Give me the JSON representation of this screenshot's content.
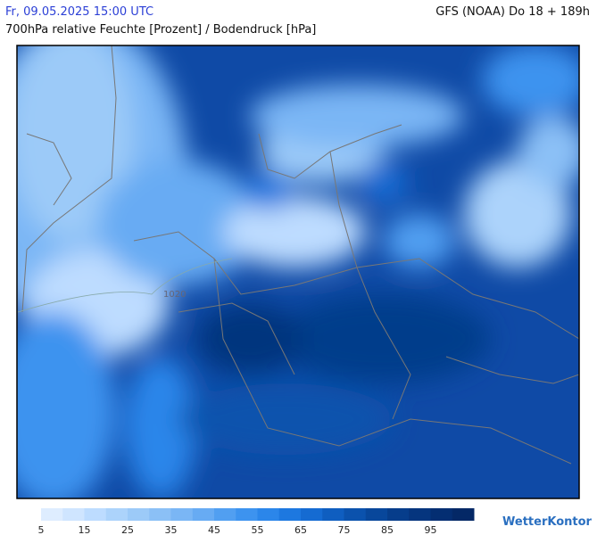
{
  "header": {
    "datetime": "Fr, 09.05.2025 15:00 UTC",
    "model": "GFS (NOAA) Do 18 + 189h",
    "title": "700hPa relative Feuchte [Prozent] / Bodendruck [hPa]"
  },
  "map": {
    "isobar_label": "1020"
  },
  "colorbar": {
    "lim": [
      5,
      105
    ],
    "ticks": [
      5,
      15,
      25,
      35,
      45,
      55,
      65,
      75,
      85,
      95
    ],
    "colors": [
      "#deedff",
      "#cfe5ff",
      "#bddcff",
      "#acd3fb",
      "#9ccaf8",
      "#8bc0f6",
      "#7ab6f5",
      "#67abf3",
      "#519ff1",
      "#3d93ef",
      "#2b86ea",
      "#1d78e0",
      "#156bd2",
      "#0f5ec0",
      "#0b52ad",
      "#08479b",
      "#063d8b",
      "#05357e",
      "#042e72",
      "#042866"
    ]
  },
  "logo": "WetterKontor"
}
